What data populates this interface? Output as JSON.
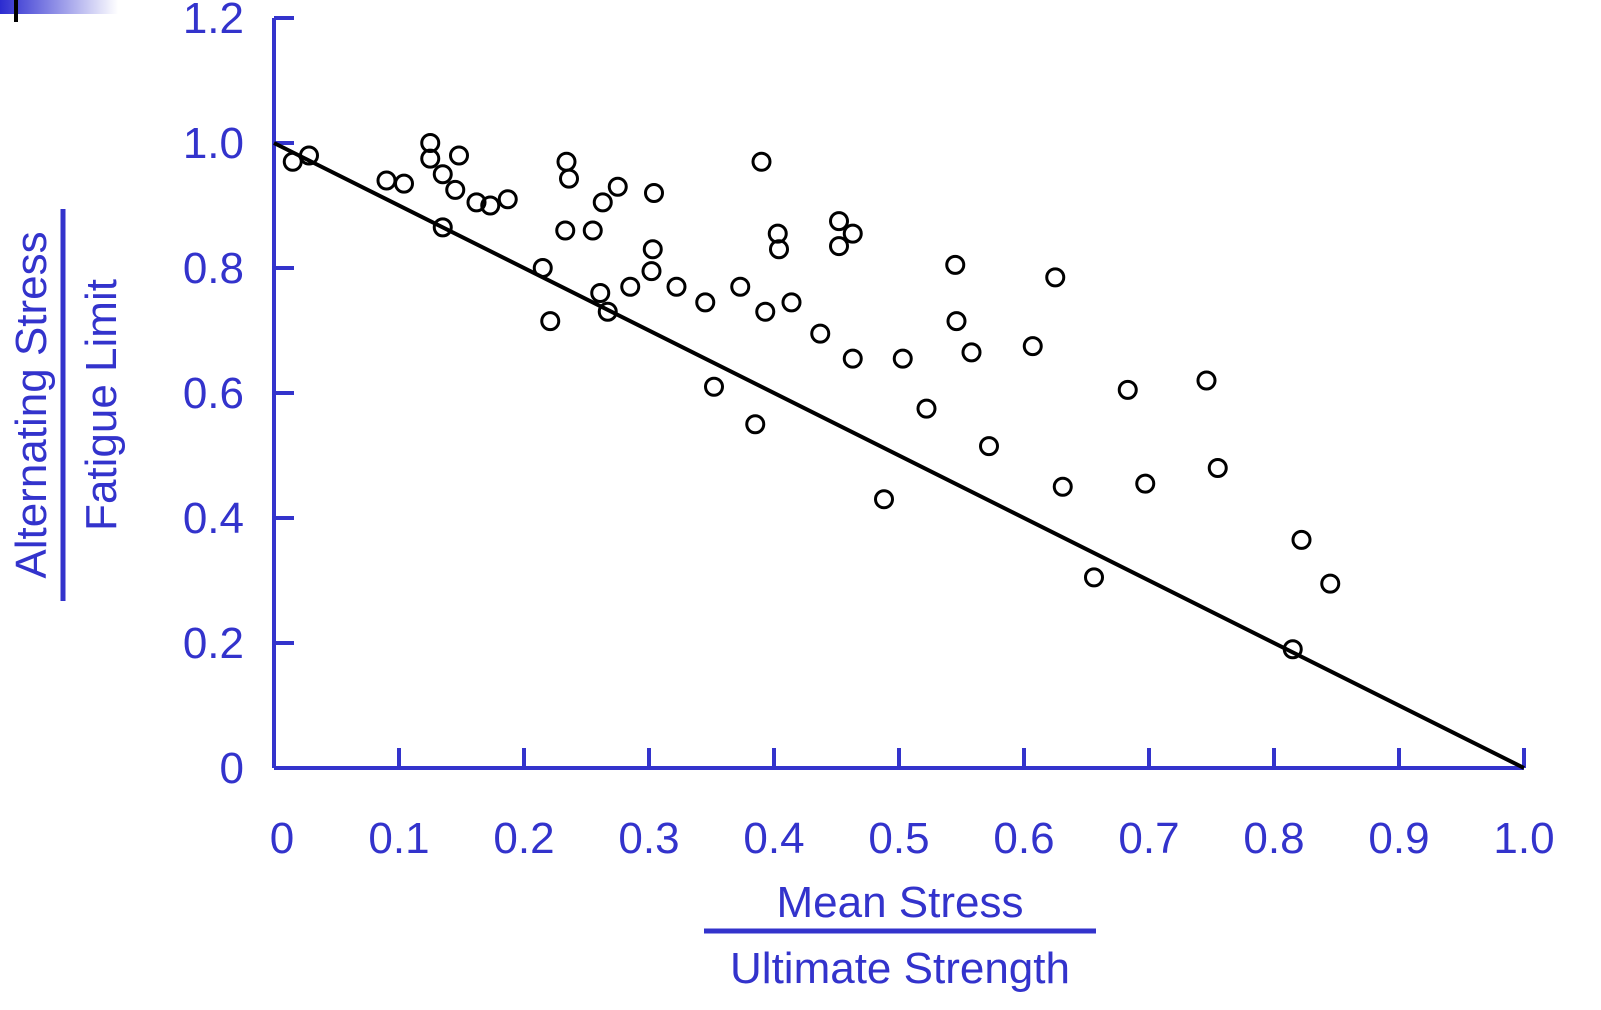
{
  "chart_data": {
    "type": "scatter",
    "title": "",
    "xlabel": {
      "numerator": "Mean Stress",
      "denominator": "Ultimate Strength"
    },
    "ylabel": {
      "numerator": "Alternating Stress",
      "denominator": "Fatigue Limit"
    },
    "xlim": [
      0,
      1.0
    ],
    "ylim": [
      0,
      1.2
    ],
    "x_ticks": [
      "0",
      "0.1",
      "0.2",
      "0.3",
      "0.4",
      "0.5",
      "0.6",
      "0.7",
      "0.8",
      "0.9",
      "1.0"
    ],
    "y_ticks": [
      "0",
      "0.2",
      "0.4",
      "0.6",
      "0.8",
      "1.0",
      "1.2"
    ],
    "grid": false,
    "axis_color": "#3333cc",
    "text_color": "#3333cc",
    "marker_color": "#000000",
    "line_color": "#000000",
    "series": [
      {
        "points": [
          [
            0.015,
            0.97
          ],
          [
            0.028,
            0.98
          ],
          [
            0.09,
            0.94
          ],
          [
            0.104,
            0.935
          ],
          [
            0.125,
            1.0
          ],
          [
            0.125,
            0.975
          ],
          [
            0.135,
            0.95
          ],
          [
            0.135,
            0.865
          ],
          [
            0.145,
            0.925
          ],
          [
            0.148,
            0.98
          ],
          [
            0.162,
            0.905
          ],
          [
            0.173,
            0.9
          ],
          [
            0.187,
            0.91
          ],
          [
            0.215,
            0.8
          ],
          [
            0.221,
            0.715
          ],
          [
            0.233,
            0.86
          ],
          [
            0.234,
            0.97
          ],
          [
            0.236,
            0.943
          ],
          [
            0.255,
            0.86
          ],
          [
            0.261,
            0.76
          ],
          [
            0.263,
            0.905
          ],
          [
            0.267,
            0.73
          ],
          [
            0.275,
            0.93
          ],
          [
            0.285,
            0.77
          ],
          [
            0.302,
            0.795
          ],
          [
            0.303,
            0.83
          ],
          [
            0.304,
            0.92
          ],
          [
            0.322,
            0.77
          ],
          [
            0.345,
            0.745
          ],
          [
            0.352,
            0.61
          ],
          [
            0.373,
            0.77
          ],
          [
            0.385,
            0.55
          ],
          [
            0.39,
            0.97
          ],
          [
            0.393,
            0.73
          ],
          [
            0.403,
            0.855
          ],
          [
            0.404,
            0.83
          ],
          [
            0.414,
            0.745
          ],
          [
            0.437,
            0.695
          ],
          [
            0.452,
            0.875
          ],
          [
            0.452,
            0.835
          ],
          [
            0.463,
            0.855
          ],
          [
            0.463,
            0.655
          ],
          [
            0.488,
            0.43
          ],
          [
            0.503,
            0.655
          ],
          [
            0.522,
            0.575
          ],
          [
            0.545,
            0.805
          ],
          [
            0.546,
            0.715
          ],
          [
            0.558,
            0.665
          ],
          [
            0.572,
            0.515
          ],
          [
            0.607,
            0.675
          ],
          [
            0.625,
            0.785
          ],
          [
            0.631,
            0.45
          ],
          [
            0.656,
            0.305
          ],
          [
            0.683,
            0.605
          ],
          [
            0.697,
            0.455
          ],
          [
            0.746,
            0.62
          ],
          [
            0.755,
            0.48
          ],
          [
            0.815,
            0.19
          ],
          [
            0.822,
            0.365
          ],
          [
            0.845,
            0.295
          ]
        ]
      }
    ],
    "reference_line": {
      "x": [
        0,
        1.0
      ],
      "y": [
        1.0,
        0
      ]
    }
  }
}
